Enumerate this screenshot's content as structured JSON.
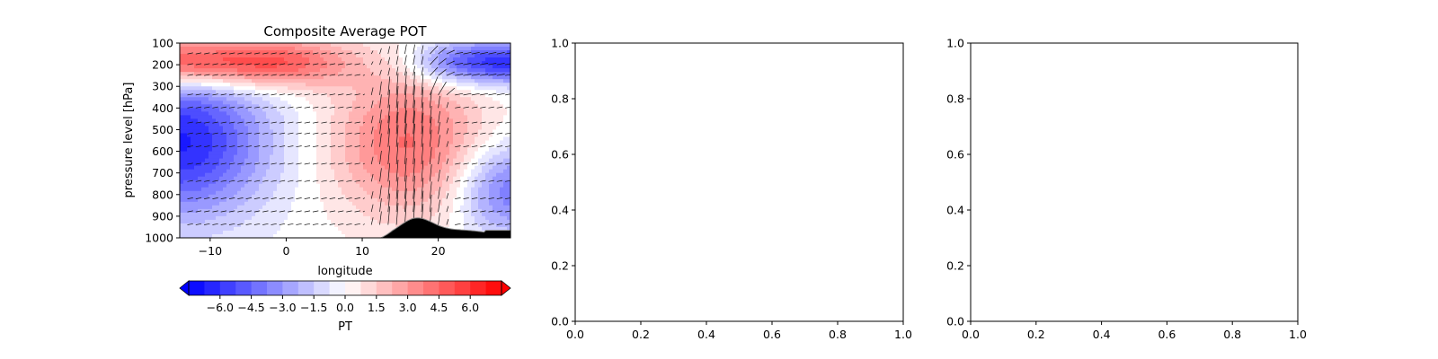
{
  "chart_data": [
    {
      "type": "heatmap",
      "title": "Composite Average POT",
      "xlabel": "longitude",
      "ylabel": "pressure level [hPa]",
      "xlim": [
        -14,
        29.5
      ],
      "ylim": [
        1000,
        100
      ],
      "x_ticks": [
        -10,
        0,
        10,
        20
      ],
      "y_ticks": [
        100,
        200,
        300,
        400,
        500,
        600,
        700,
        800,
        900,
        1000
      ],
      "overlay": "wind vectors and terrain mask",
      "colorbar": {
        "label": "PT",
        "ticks": [
          "−6.0",
          "−4.5",
          "−3.0",
          "−1.5",
          "0.0",
          "1.5",
          "3.0",
          "4.5",
          "6.0"
        ],
        "range": [
          -7.5,
          7.5
        ],
        "extend": "both",
        "colormap": "bwr"
      },
      "colors": {
        "negative": "#0000ff",
        "neutral": "#ffffff",
        "positive": "#ff0000",
        "terrain": "#000000"
      }
    },
    {
      "type": "empty",
      "xlim": [
        0,
        1
      ],
      "ylim": [
        0,
        1
      ],
      "x_ticks": [
        "0.0",
        "0.2",
        "0.4",
        "0.6",
        "0.8",
        "1.0"
      ],
      "y_ticks": [
        "0.0",
        "0.2",
        "0.4",
        "0.6",
        "0.8",
        "1.0"
      ]
    },
    {
      "type": "empty",
      "xlim": [
        0,
        1
      ],
      "ylim": [
        0,
        1
      ],
      "x_ticks": [
        "0.0",
        "0.2",
        "0.4",
        "0.6",
        "0.8",
        "1.0"
      ],
      "y_ticks": [
        "0.0",
        "0.2",
        "0.4",
        "0.6",
        "0.8",
        "1.0"
      ]
    }
  ]
}
